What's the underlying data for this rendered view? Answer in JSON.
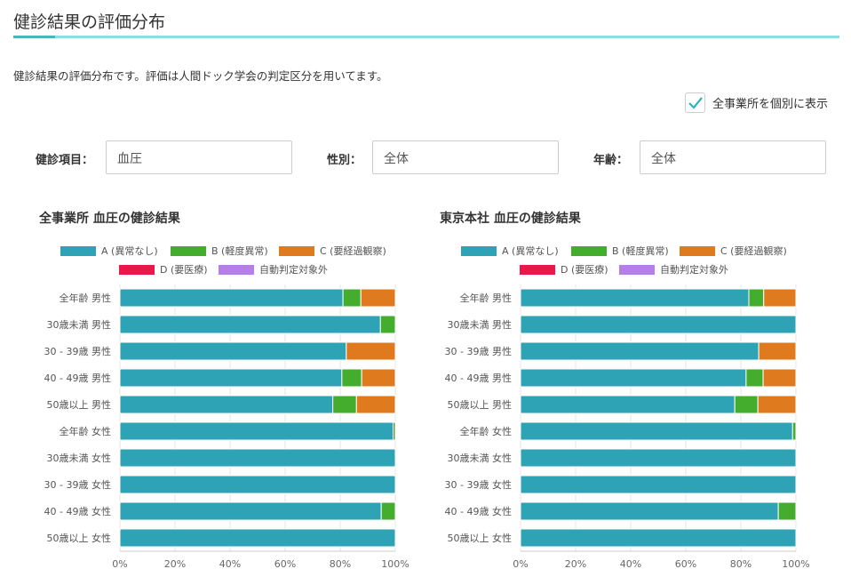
{
  "header": {
    "title": "健診結果の評価分布"
  },
  "description": "健診結果の評価分布です。評価は人間ドック学会の判定区分を用いてます。",
  "checkbox": {
    "label": "全事業所を個別に表示",
    "checked": true
  },
  "filters": [
    {
      "label": "健診項目：",
      "value": "血圧"
    },
    {
      "label": "性別：",
      "value": "全体"
    },
    {
      "label": "年齢：",
      "value": "全体"
    }
  ],
  "legend": [
    {
      "label": "A (異常なし)",
      "color": "#2ea3b5"
    },
    {
      "label": "B (軽度異常)",
      "color": "#45ad2e"
    },
    {
      "label": "C (要経過観察)",
      "color": "#e07a1e"
    },
    {
      "label": "D (要医療)",
      "color": "#e8194a"
    },
    {
      "label": "自動判定対象外",
      "color": "#b57ee8"
    }
  ],
  "chart_data": [
    {
      "type": "bar",
      "stacked": true,
      "orientation": "horizontal",
      "title": "全事業所 血圧の健診結果",
      "categories": [
        "全年齢 男性",
        "30歳未満 男性",
        "30 - 39歳 男性",
        "40 - 49歳 男性",
        "50歳以上 男性",
        "全年齢 女性",
        "30歳未満 女性",
        "30 - 39歳 女性",
        "40 - 49歳 女性",
        "50歳以上 女性"
      ],
      "xlim": [
        0,
        100
      ],
      "xticks": [
        "0%",
        "20%",
        "40%",
        "60%",
        "80%",
        "100%"
      ],
      "series": [
        {
          "name": "A (異常なし)",
          "values": [
            81,
            94.6,
            82.2,
            80.6,
            77.3,
            99.2,
            100,
            100,
            94.9,
            100
          ]
        },
        {
          "name": "B (軽度異常)",
          "values": [
            6.5,
            5.4,
            0,
            7.2,
            8.6,
            0.8,
            0,
            0,
            5.1,
            0
          ]
        },
        {
          "name": "C (要経過観察)",
          "values": [
            12.5,
            0,
            17.8,
            12.2,
            14.1,
            0,
            0,
            0,
            0,
            0
          ]
        },
        {
          "name": "D (要医療)",
          "values": [
            0,
            0,
            0,
            0,
            0,
            0,
            0,
            0,
            0,
            0
          ]
        },
        {
          "name": "自動判定対象外",
          "values": [
            0,
            0,
            0,
            0,
            0,
            0,
            0,
            0,
            0,
            0
          ]
        }
      ]
    },
    {
      "type": "bar",
      "stacked": true,
      "orientation": "horizontal",
      "title": "東京本社 血圧の健診結果",
      "categories": [
        "全年齢 男性",
        "30歳未満 男性",
        "30 - 39歳 男性",
        "40 - 49歳 男性",
        "50歳以上 男性",
        "全年齢 女性",
        "30歳未満 女性",
        "30 - 39歳 女性",
        "40 - 49歳 女性",
        "50歳以上 女性"
      ],
      "xlim": [
        0,
        100
      ],
      "xticks": [
        "0%",
        "20%",
        "40%",
        "60%",
        "80%",
        "100%"
      ],
      "series": [
        {
          "name": "A (異常なし)",
          "values": [
            82.9,
            100,
            86.5,
            81.9,
            77.8,
            98.8,
            100,
            100,
            93.6,
            100
          ]
        },
        {
          "name": "B (軽度異常)",
          "values": [
            5.4,
            0,
            0,
            6.2,
            8.4,
            1.2,
            0,
            0,
            6.4,
            0
          ]
        },
        {
          "name": "C (要経過観察)",
          "values": [
            11.7,
            0,
            13.5,
            11.9,
            13.8,
            0,
            0,
            0,
            0,
            0
          ]
        },
        {
          "name": "D (要医療)",
          "values": [
            0,
            0,
            0,
            0,
            0,
            0,
            0,
            0,
            0,
            0
          ]
        },
        {
          "name": "自動判定対象外",
          "values": [
            0,
            0,
            0,
            0,
            0,
            0,
            0,
            0,
            0,
            0
          ]
        }
      ]
    }
  ]
}
